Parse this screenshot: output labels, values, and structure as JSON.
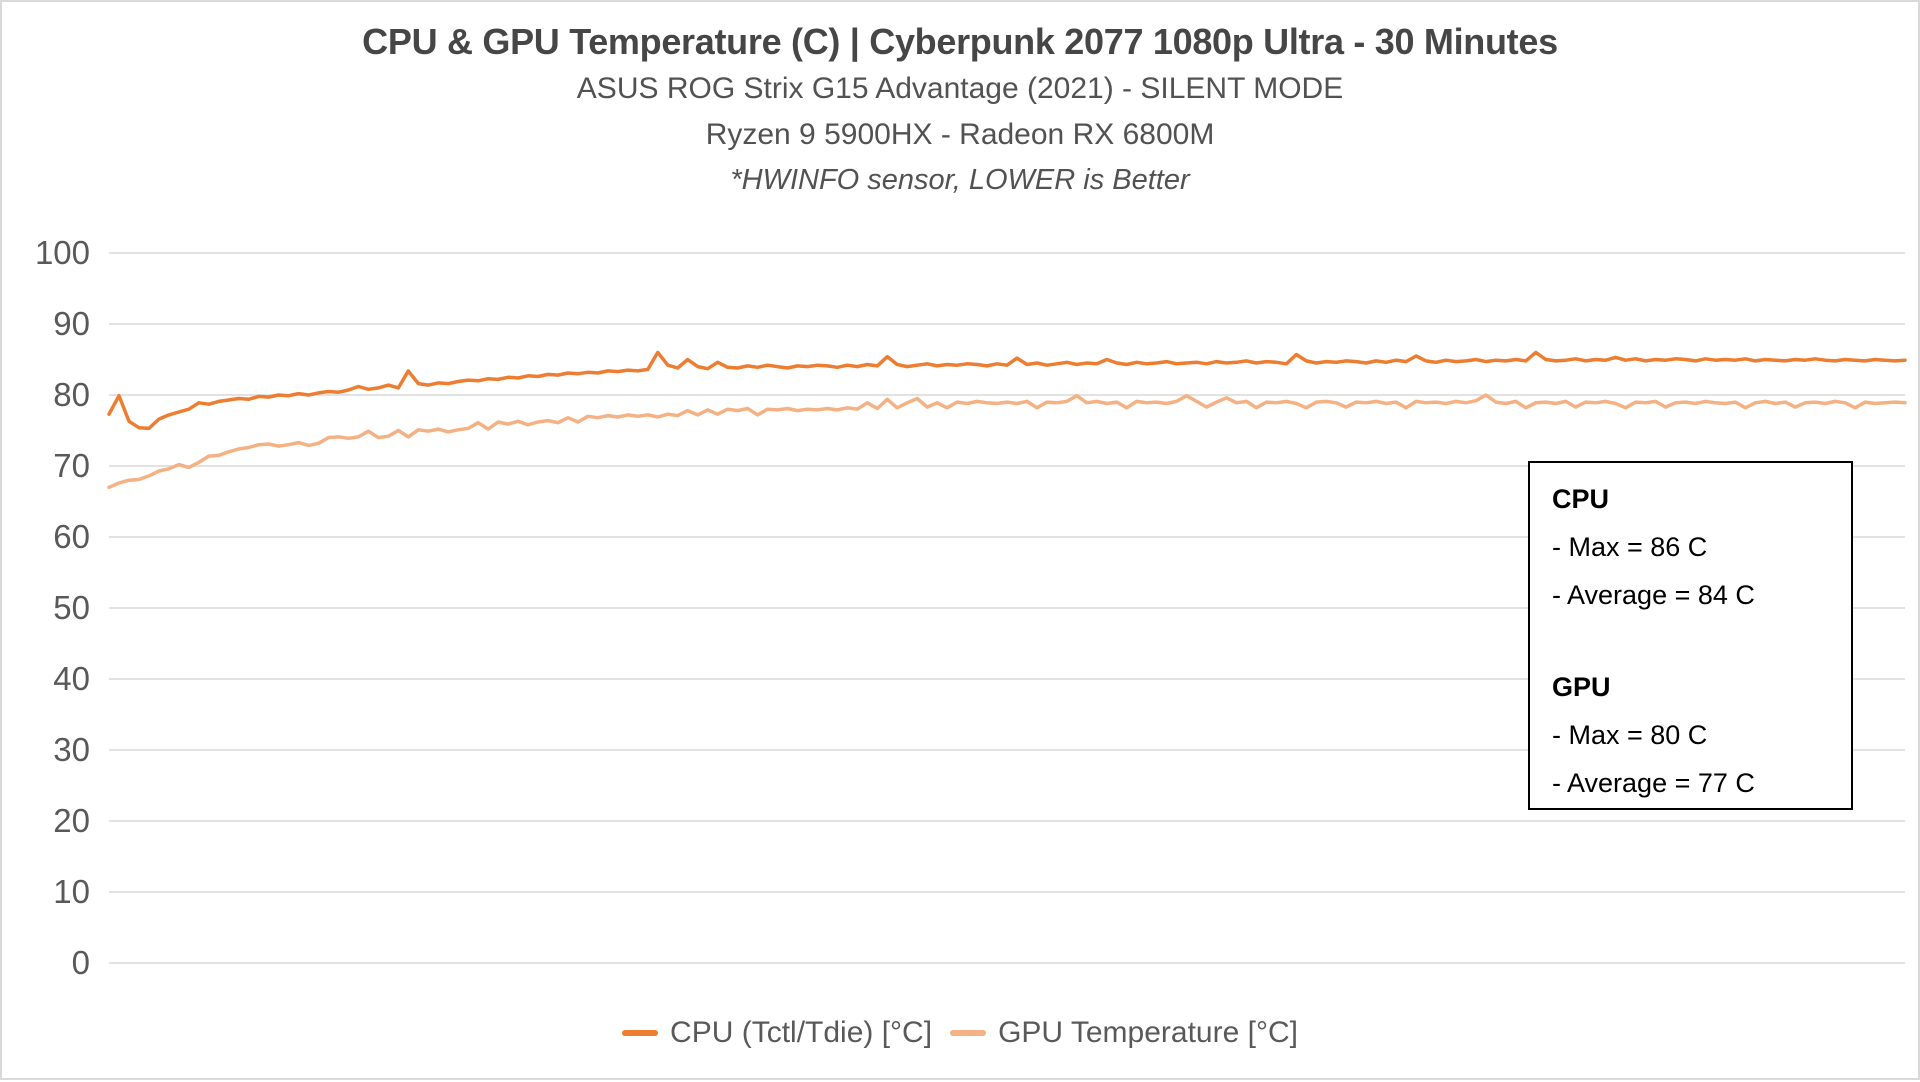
{
  "chart_data": {
    "type": "line",
    "title": "CPU & GPU Temperature (C) | Cyberpunk 2077 1080p Ultra - 30 Minutes",
    "subtitles": [
      "ASUS ROG Strix G15 Advantage (2021) - SILENT MODE",
      "Ryzen 9 5900HX - Radeon RX 6800M",
      "*HWINFO sensor, LOWER is Better"
    ],
    "xlabel": "",
    "ylabel": "",
    "ylim": [
      0,
      100
    ],
    "ytick_step": 10,
    "grid": true,
    "legend_position": "bottom",
    "x_interval_seconds": 10,
    "duration_seconds": 1800,
    "gridline_color": "#D9D9D9",
    "series": [
      {
        "name": "CPU (Tctl/Tdie) [°C]",
        "color": "#ED7D31",
        "max": 86,
        "average": 84,
        "values": [
          77.3,
          79.9,
          76.3,
          75.4,
          75.3,
          76.6,
          77.2,
          77.6,
          78.0,
          78.9,
          78.7,
          79.1,
          79.3,
          79.5,
          79.4,
          79.8,
          79.7,
          80.0,
          79.9,
          80.2,
          80.0,
          80.3,
          80.5,
          80.4,
          80.7,
          81.2,
          80.8,
          81.0,
          81.4,
          81.0,
          83.4,
          81.6,
          81.4,
          81.7,
          81.6,
          81.9,
          82.1,
          82.0,
          82.3,
          82.2,
          82.5,
          82.4,
          82.7,
          82.6,
          82.9,
          82.8,
          83.1,
          83.0,
          83.2,
          83.1,
          83.4,
          83.3,
          83.5,
          83.4,
          83.6,
          86.0,
          84.2,
          83.8,
          85.0,
          84.0,
          83.7,
          84.6,
          83.9,
          83.8,
          84.1,
          83.9,
          84.2,
          84.0,
          83.8,
          84.1,
          84.0,
          84.2,
          84.1,
          83.9,
          84.2,
          84.0,
          84.3,
          84.1,
          85.4,
          84.3,
          84.0,
          84.2,
          84.4,
          84.1,
          84.3,
          84.2,
          84.4,
          84.3,
          84.1,
          84.4,
          84.2,
          85.2,
          84.3,
          84.5,
          84.2,
          84.4,
          84.6,
          84.3,
          84.5,
          84.4,
          85.0,
          84.5,
          84.3,
          84.6,
          84.4,
          84.5,
          84.7,
          84.4,
          84.5,
          84.6,
          84.4,
          84.7,
          84.5,
          84.6,
          84.8,
          84.5,
          84.7,
          84.6,
          84.4,
          85.7,
          84.8,
          84.5,
          84.7,
          84.6,
          84.8,
          84.7,
          84.5,
          84.8,
          84.6,
          84.9,
          84.7,
          85.5,
          84.8,
          84.6,
          84.9,
          84.7,
          84.8,
          85.0,
          84.7,
          84.9,
          84.8,
          85.0,
          84.8,
          86.0,
          85.0,
          84.8,
          84.9,
          85.1,
          84.8,
          85.0,
          84.9,
          85.3,
          84.9,
          85.1,
          84.8,
          85.0,
          84.9,
          85.1,
          85.0,
          84.8,
          85.1,
          84.9,
          85.0,
          84.9,
          85.1,
          84.8,
          85.0,
          84.9,
          84.8,
          85.0,
          84.9,
          85.1,
          84.9,
          84.8,
          85.0,
          84.9,
          84.8,
          85.0,
          84.9,
          84.8,
          84.9
        ]
      },
      {
        "name": "GPU Temperature [°C]",
        "color": "#F4B183",
        "max": 80,
        "average": 77,
        "values": [
          67.0,
          67.6,
          68.0,
          68.1,
          68.6,
          69.3,
          69.6,
          70.2,
          69.8,
          70.5,
          71.4,
          71.5,
          72.0,
          72.4,
          72.6,
          73.0,
          73.1,
          72.8,
          73.0,
          73.3,
          72.9,
          73.2,
          74.0,
          74.1,
          73.9,
          74.1,
          74.9,
          74.0,
          74.2,
          75.0,
          74.1,
          75.1,
          74.9,
          75.2,
          74.8,
          75.1,
          75.3,
          76.1,
          75.2,
          76.2,
          75.9,
          76.3,
          75.8,
          76.2,
          76.4,
          76.1,
          76.8,
          76.2,
          77.0,
          76.8,
          77.1,
          76.9,
          77.2,
          77.0,
          77.2,
          76.9,
          77.3,
          77.1,
          77.8,
          77.2,
          77.9,
          77.3,
          78.0,
          77.8,
          78.1,
          77.2,
          78.0,
          77.9,
          78.1,
          77.8,
          78.0,
          77.9,
          78.1,
          77.9,
          78.2,
          78.0,
          78.9,
          78.1,
          79.4,
          78.2,
          78.9,
          79.5,
          78.3,
          78.9,
          78.2,
          79.0,
          78.8,
          79.1,
          78.9,
          78.8,
          79.0,
          78.8,
          79.1,
          78.2,
          79.0,
          78.9,
          79.1,
          79.9,
          78.9,
          79.1,
          78.8,
          79.0,
          78.2,
          79.1,
          78.9,
          79.0,
          78.8,
          79.1,
          79.9,
          79.1,
          78.3,
          79.0,
          79.6,
          78.9,
          79.1,
          78.2,
          79.0,
          78.9,
          79.1,
          78.8,
          78.2,
          79.0,
          79.1,
          78.9,
          78.3,
          79.0,
          78.9,
          79.1,
          78.8,
          79.0,
          78.2,
          79.1,
          78.9,
          79.0,
          78.8,
          79.1,
          78.9,
          79.2,
          80.0,
          79.0,
          78.8,
          79.1,
          78.2,
          78.9,
          79.0,
          78.8,
          79.1,
          78.3,
          79.0,
          78.9,
          79.1,
          78.8,
          78.2,
          79.0,
          78.9,
          79.1,
          78.3,
          78.9,
          79.0,
          78.8,
          79.1,
          78.9,
          78.8,
          79.0,
          78.2,
          78.9,
          79.1,
          78.8,
          79.0,
          78.3,
          78.9,
          79.0,
          78.8,
          79.1,
          78.9,
          78.2,
          79.0,
          78.8,
          78.9,
          79.0,
          78.9
        ]
      }
    ]
  },
  "annotation": {
    "cpu_heading": "CPU",
    "cpu_max": "- Max = 86 C",
    "cpu_avg": "- Average = 84 C",
    "gpu_heading": "GPU",
    "gpu_max": "- Max = 80 C",
    "gpu_avg": "- Average = 77 C"
  },
  "colors": {
    "cpu_line": "#ED7D31",
    "gpu_line": "#F4B183",
    "gridline": "#D9D9D9",
    "axis_text": "#595959",
    "title_text": "#464646"
  }
}
